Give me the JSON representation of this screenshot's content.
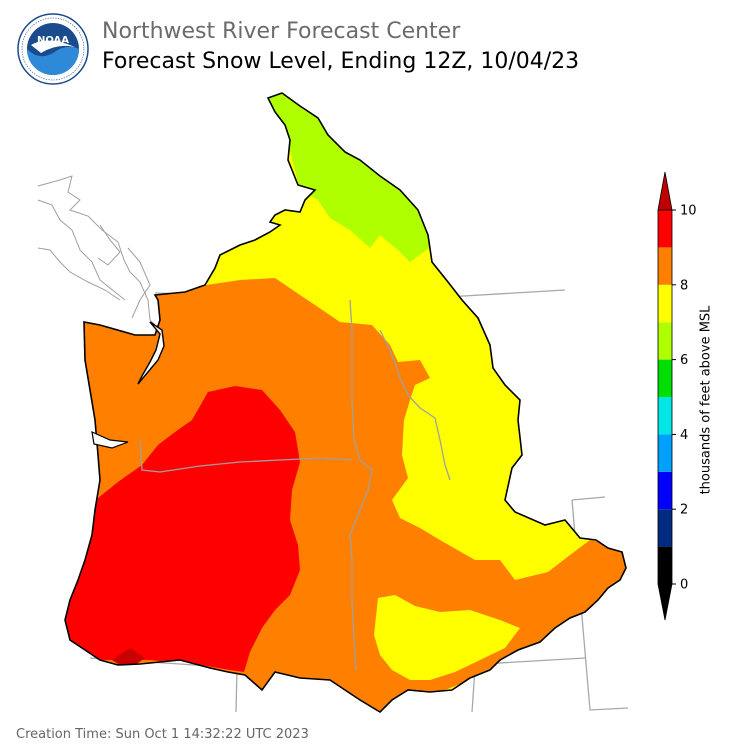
{
  "header": {
    "org_title": "Northwest River Forecast Center",
    "map_title": "Forecast Snow Level, Ending 12Z, 10/04/23"
  },
  "logo": {
    "icon": "noaa-logo-icon",
    "center_text": "NOAA",
    "ring_text": "NATIONAL OCEANIC AND ATMOSPHERIC ADMINISTRATION · U.S. DEPARTMENT OF COMMERCE",
    "colors": {
      "ring": "#ffffff",
      "outer": "#1a4b8c",
      "sky": "#2e8ad8",
      "bird": "#ffffff"
    }
  },
  "colorbar": {
    "axis_label": "thousands of feet above MSL",
    "ticks": [
      "0",
      "2",
      "4",
      "6",
      "8",
      "10"
    ],
    "bands": [
      {
        "range": "0-1",
        "color": "#000000"
      },
      {
        "range": "1-2",
        "color": "#002b80"
      },
      {
        "range": "2-3",
        "color": "#0000ff"
      },
      {
        "range": "3-4",
        "color": "#00a0ff"
      },
      {
        "range": "4-5",
        "color": "#00e5e5"
      },
      {
        "range": "5-6",
        "color": "#00e000"
      },
      {
        "range": "6-7",
        "color": "#b0ff00"
      },
      {
        "range": "7-8",
        "color": "#ffff00"
      },
      {
        "range": "8-9",
        "color": "#ff8000"
      },
      {
        "range": "9-10",
        "color": "#ff0000"
      }
    ],
    "extend_high_color": "#c00000",
    "extend_low_color": "#000000"
  },
  "map": {
    "region": "Columbia River Basin and Pacific Northwest coastal basins",
    "boundary_color": "#000000",
    "state_line_color": "#a0a0a0",
    "zones": [
      {
        "name": "northern-canadian-headwaters",
        "snow_level_kft": "6-7",
        "color": "#b0ff00"
      },
      {
        "name": "northern-interior-and-montana",
        "snow_level_kft": "7-8",
        "color": "#ffff00"
      },
      {
        "name": "washington-and-idaho-interior",
        "snow_level_kft": "8-9",
        "color": "#ff8000"
      },
      {
        "name": "oregon-interior-and-coast",
        "snow_level_kft": "9-10",
        "color": "#ff0000"
      },
      {
        "name": "upper-snake-pocket",
        "snow_level_kft": "7-8",
        "color": "#ffff00"
      }
    ]
  },
  "footer": {
    "creation_time": "Creation Time: Sun Oct 1 14:32:22 UTC 2023"
  }
}
